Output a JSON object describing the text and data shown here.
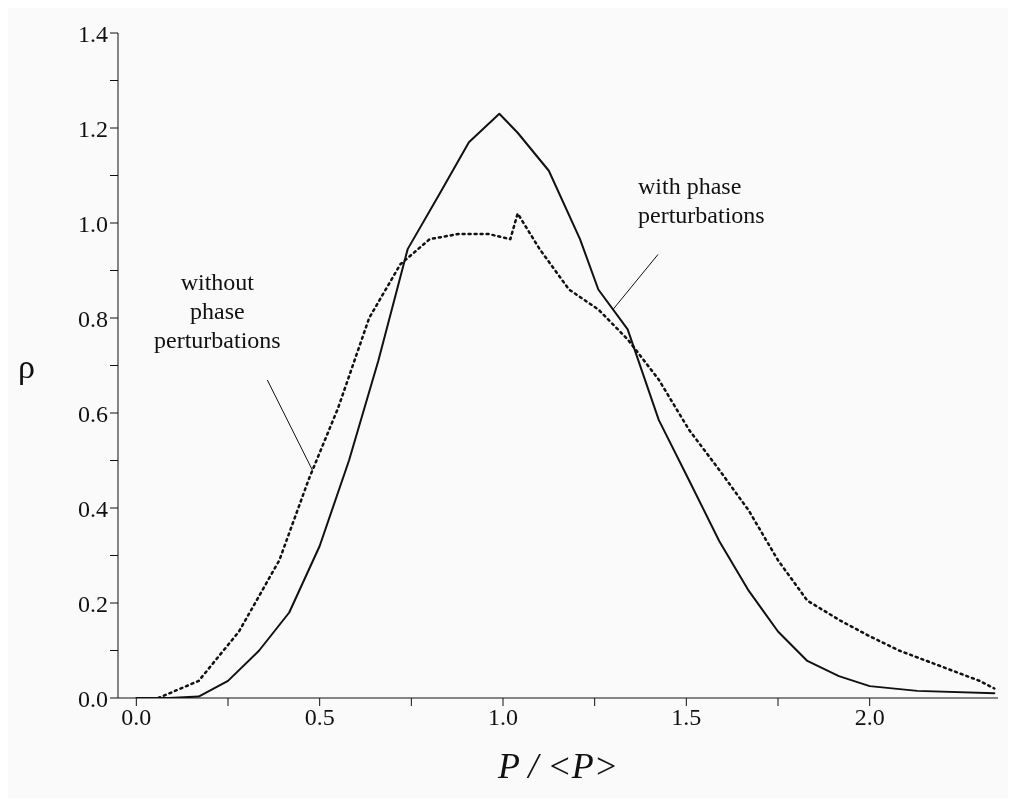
{
  "chart_data": {
    "type": "line",
    "xlabel": "P / <P>",
    "ylabel": "ρ",
    "xlim": [
      -0.05,
      2.35
    ],
    "ylim": [
      0,
      1.4
    ],
    "xticks": [
      {
        "value": 0,
        "label": "0.0"
      },
      {
        "value": 0.25,
        "label": null
      },
      {
        "value": 0.5,
        "label": "0.5"
      },
      {
        "value": 0.75,
        "label": null
      },
      {
        "value": 1,
        "label": "1.0"
      },
      {
        "value": 1.25,
        "label": null
      },
      {
        "value": 1.5,
        "label": "1.5"
      },
      {
        "value": 1.75,
        "label": null
      },
      {
        "value": 2,
        "label": "2.0"
      }
    ],
    "yticks": [
      {
        "value": 0,
        "label": "0.0"
      },
      {
        "value": 0.1,
        "label": null
      },
      {
        "value": 0.2,
        "label": "0.2"
      },
      {
        "value": 0.3,
        "label": null
      },
      {
        "value": 0.4,
        "label": "0.4"
      },
      {
        "value": 0.5,
        "label": null
      },
      {
        "value": 0.6,
        "label": "0.6"
      },
      {
        "value": 0.7,
        "label": null
      },
      {
        "value": 0.8,
        "label": "0.8"
      },
      {
        "value": 0.9,
        "label": null
      },
      {
        "value": 1,
        "label": "1.0"
      },
      {
        "value": 1.1,
        "label": null
      },
      {
        "value": 1.2,
        "label": "1.2"
      },
      {
        "value": 1.3,
        "label": null
      },
      {
        "value": 1.4,
        "label": "1.4"
      }
    ],
    "grid": false,
    "legend": false,
    "marker": "none",
    "series": [
      {
        "color": "#111111",
        "line_style": "solid",
        "x": [
          0,
          0.09,
          0.17,
          0.25,
          0.335,
          0.417,
          0.5,
          0.58,
          0.66,
          0.74,
          0.826,
          0.907,
          0.99,
          1.04,
          1.125,
          1.21,
          1.26,
          1.34,
          1.425,
          1.507,
          1.59,
          1.67,
          1.75,
          1.83,
          1.916,
          2.0,
          2.13,
          2.34
        ],
        "values": [
          0,
          0,
          0.003,
          0.036,
          0.1,
          0.18,
          0.32,
          0.5,
          0.71,
          0.945,
          1.06,
          1.17,
          1.23,
          1.19,
          1.11,
          0.966,
          0.86,
          0.776,
          0.585,
          0.459,
          0.33,
          0.226,
          0.14,
          0.078,
          0.046,
          0.025,
          0.015,
          0.01
        ]
      },
      {
        "color": "#111111",
        "line_style": "dotted",
        "x": [
          0.06,
          0.17,
          0.28,
          0.39,
          0.47,
          0.55,
          0.635,
          0.72,
          0.8,
          0.88,
          0.96,
          1.02,
          1.04,
          1.1,
          1.18,
          1.26,
          1.34,
          1.425,
          1.507,
          1.59,
          1.67,
          1.75,
          1.83,
          1.92,
          2.0,
          2.08,
          2.19,
          2.3,
          2.34
        ],
        "values": [
          0,
          0.036,
          0.14,
          0.29,
          0.46,
          0.61,
          0.8,
          0.913,
          0.966,
          0.977,
          0.977,
          0.966,
          1.02,
          0.945,
          0.86,
          0.818,
          0.755,
          0.67,
          0.565,
          0.48,
          0.395,
          0.29,
          0.205,
          0.163,
          0.13,
          0.1,
          0.068,
          0.036,
          0.02
        ]
      }
    ],
    "annotations": [
      {
        "text": "with phase perturbations",
        "x": 1.3,
        "y": 0.818
      },
      {
        "text": "without phase perturbations",
        "x": 0.48,
        "y": 0.48
      }
    ]
  }
}
